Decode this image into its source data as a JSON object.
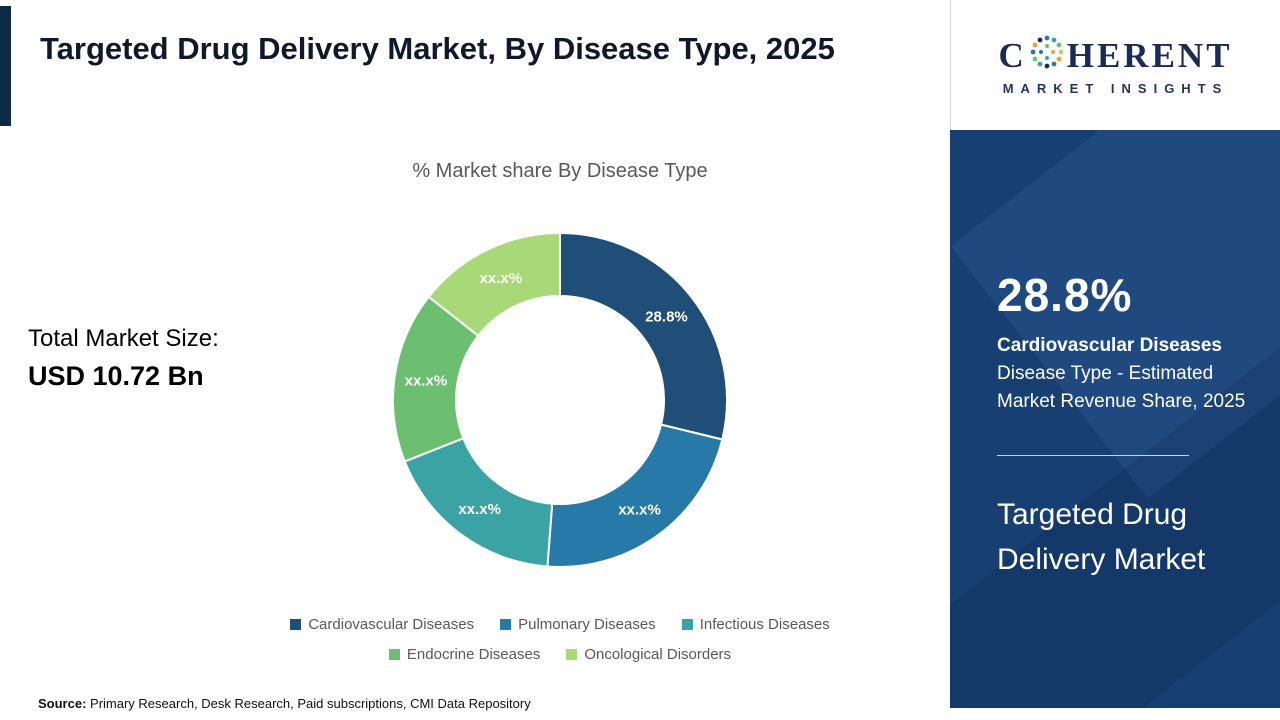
{
  "title": "Targeted Drug Delivery Market, By Disease Type, 2025",
  "total_market": {
    "label": "Total Market Size:",
    "value": "USD 10.72 Bn"
  },
  "source": {
    "label": "Source:",
    "text": " Primary Research, Desk Research, Paid subscriptions, CMI Data Repository"
  },
  "chart_data": {
    "type": "pie",
    "subtype": "donut",
    "title": "% Market share By Disease Type",
    "categories": [
      "Cardiovascular Diseases",
      "Pulmonary Diseases",
      "Infectious Diseases",
      "Endocrine Diseases",
      "Oncological Disorders"
    ],
    "values_pct_estimated": [
      28.8,
      22.4,
      17.8,
      16.6,
      14.4
    ],
    "slice_labels": [
      "28.8%",
      "xx.x%",
      "xx.x%",
      "xx.x%",
      "xx.x%"
    ],
    "colors": [
      "#1f4e79",
      "#2779a7",
      "#3ba3a3",
      "#6cbf70",
      "#a8d878"
    ],
    "start_angle_deg": 0,
    "legend_position": "bottom",
    "label_color": "#ffffff"
  },
  "sidebar": {
    "logo": {
      "name_prefix": "C",
      "name_suffix": "HERENT",
      "tagline": "MARKET INSIGHTS"
    },
    "highlight_pct": "28.8%",
    "highlight_title": "Cardiovascular Diseases",
    "highlight_desc": "Disease Type - Estimated Market Revenue Share, 2025",
    "panel_title": "Targeted Drug Delivery Market",
    "colors": {
      "panel": "#173f72"
    }
  }
}
